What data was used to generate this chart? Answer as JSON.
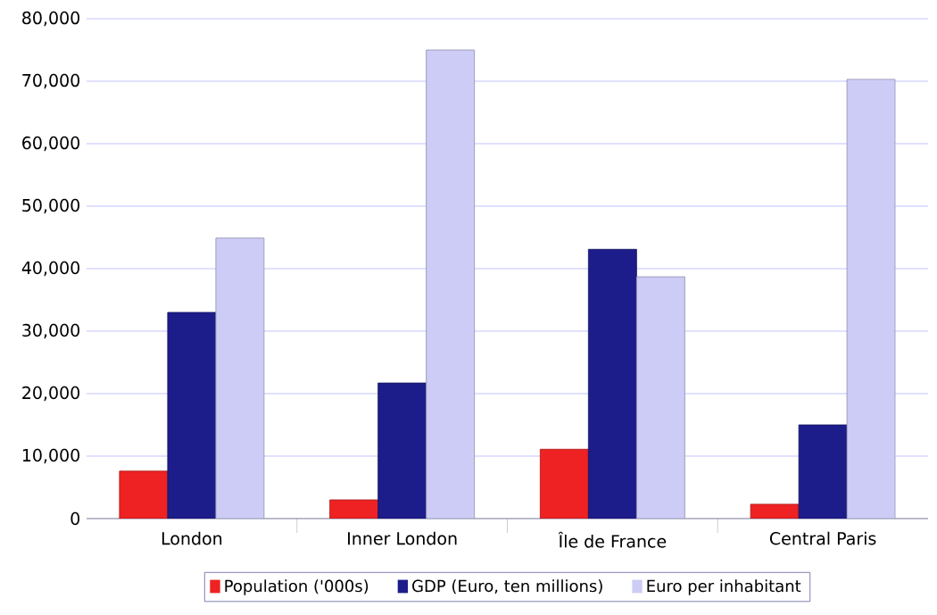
{
  "chart_data": {
    "type": "bar",
    "categories": [
      "London",
      "Inner London",
      "Île de France",
      "Central Paris"
    ],
    "series": [
      {
        "name": "Population ('000s)",
        "color": "#ee2222",
        "values": [
          7600,
          3000,
          11100,
          2300
        ]
      },
      {
        "name": "GDP (Euro, ten millions)",
        "color": "#1c1c8a",
        "values": [
          33000,
          21700,
          43100,
          15000
        ]
      },
      {
        "name": "Euro per inhabitant",
        "color": "#ccccf6",
        "values": [
          44900,
          75000,
          38700,
          70300
        ]
      }
    ],
    "ylim": [
      0,
      80000
    ],
    "yticks": [
      {
        "value": 0,
        "label": "0"
      },
      {
        "value": 10000,
        "label": "10,000"
      },
      {
        "value": 20000,
        "label": "20,000"
      },
      {
        "value": 30000,
        "label": "30,000"
      },
      {
        "value": 40000,
        "label": "40,000"
      },
      {
        "value": 50000,
        "label": "50,000"
      },
      {
        "value": 60000,
        "label": "60,000"
      },
      {
        "value": 70000,
        "label": "70,000"
      },
      {
        "value": 80000,
        "label": "80,000"
      }
    ],
    "grid": "y",
    "legend": "bottom"
  }
}
